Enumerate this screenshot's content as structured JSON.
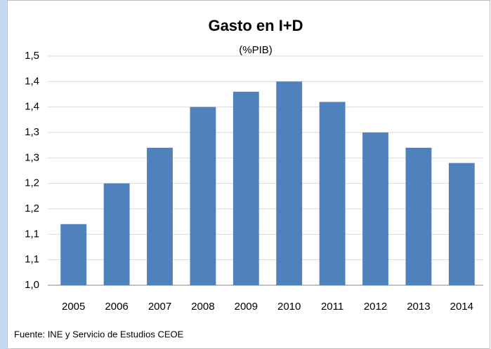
{
  "chart_data": {
    "type": "bar",
    "title": "Gasto en I+D",
    "subtitle": "(%PIB)",
    "source": "Fuente: INE y Servicio de Estudios CEOE",
    "categories": [
      "2005",
      "2006",
      "2007",
      "2008",
      "2009",
      "2010",
      "2011",
      "2012",
      "2013",
      "2014"
    ],
    "values": [
      1.17,
      1.25,
      1.32,
      1.4,
      1.43,
      1.45,
      1.41,
      1.35,
      1.32,
      1.29
    ],
    "color": "#4f81bd",
    "ylim": [
      1.05,
      1.5
    ],
    "yticks": [
      {
        "value": 1.05,
        "label": "1,0"
      },
      {
        "value": 1.1,
        "label": "1,1"
      },
      {
        "value": 1.15,
        "label": "1,1"
      },
      {
        "value": 1.2,
        "label": "1,2"
      },
      {
        "value": 1.25,
        "label": "1,2"
      },
      {
        "value": 1.3,
        "label": "1,3"
      },
      {
        "value": 1.35,
        "label": "1,3"
      },
      {
        "value": 1.4,
        "label": "1,4"
      },
      {
        "value": 1.45,
        "label": "1,4"
      },
      {
        "value": 1.5,
        "label": "1,5"
      }
    ],
    "grid": true
  }
}
